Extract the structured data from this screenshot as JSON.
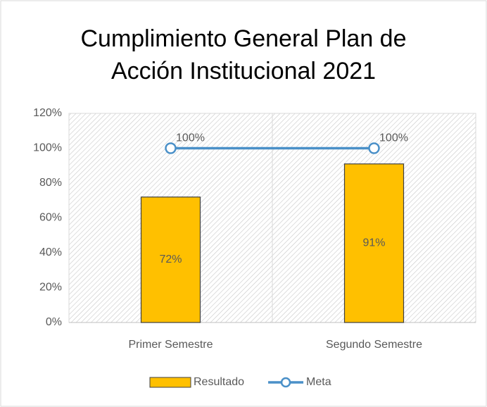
{
  "chart_data": {
    "type": "bar",
    "title": "Cumplimiento General Plan de Acción Institucional 2021",
    "categories": [
      "Primer Semestre",
      "Segundo Semestre"
    ],
    "series": [
      {
        "name": "Resultado",
        "type": "bar",
        "color": "#ffc000",
        "values": [
          72,
          91
        ],
        "value_labels": [
          "72%",
          "91%"
        ]
      },
      {
        "name": "Meta",
        "type": "line",
        "color": "#4a90c8",
        "values": [
          100,
          100
        ],
        "value_labels": [
          "100%",
          "100%"
        ]
      }
    ],
    "ylim": [
      0,
      120
    ],
    "yticks": [
      {
        "value": 0,
        "label": "0%"
      },
      {
        "value": 20,
        "label": "20%"
      },
      {
        "value": 40,
        "label": "40%"
      },
      {
        "value": 60,
        "label": "60%"
      },
      {
        "value": 80,
        "label": "80%"
      },
      {
        "value": 100,
        "label": "100%"
      },
      {
        "value": 120,
        "label": "120%"
      }
    ],
    "grid": false,
    "legend": "bottom"
  }
}
